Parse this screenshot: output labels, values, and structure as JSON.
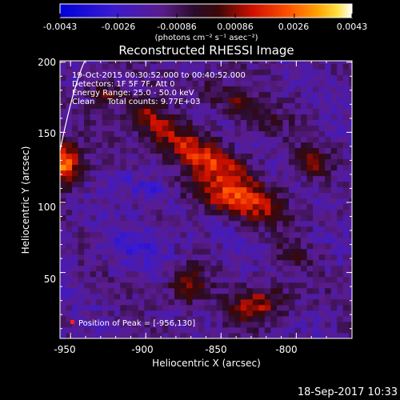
{
  "chart_data": {
    "type": "heatmap",
    "title": "Reconstructed RHESSI Image",
    "xlabel": "Heliocentric X (arcsec)",
    "ylabel": "Heliocentric Y (arcsec)",
    "xlim": [
      -957,
      -763
    ],
    "ylim": [
      3,
      201
    ],
    "x_ticks": [
      -950,
      -900,
      -850,
      -800
    ],
    "y_ticks": [
      50,
      100,
      150,
      200
    ],
    "x_tick_labels": [
      "-950",
      "-900",
      "-850",
      "-800"
    ],
    "y_tick_labels": [
      "50",
      "100",
      "150",
      "200"
    ],
    "colorbar": {
      "range": [
        -0.0043,
        0.0043
      ],
      "ticks": [
        -0.0043,
        -0.0026,
        -0.00086,
        0.00086,
        0.0026,
        0.0043
      ],
      "tick_labels": [
        "-0.0043",
        "-0.0026",
        "-0.00086",
        "0.00086",
        "0.0026",
        "0.0043"
      ],
      "unit_label": "(photons cm⁻² s⁻¹ asec⁻²)",
      "colormap": "rainbow-like (blue, purple, red, orange, yellow, white)"
    },
    "annotations": [
      "19-Oct-2015 00:30:52.000 to 00:40:52.000",
      "Detectors: 1F 5F 7F, Att 0",
      "Energy Range: 25.0 - 50.0 keV",
      "Clean     Total counts: 9.77E+03"
    ],
    "peak_label": "Position of Peak = [-956,130]",
    "peak_position": [
      -956,
      130
    ],
    "limb": true
  },
  "footer": {
    "timestamp": "18-Sep-2017 10:33"
  }
}
